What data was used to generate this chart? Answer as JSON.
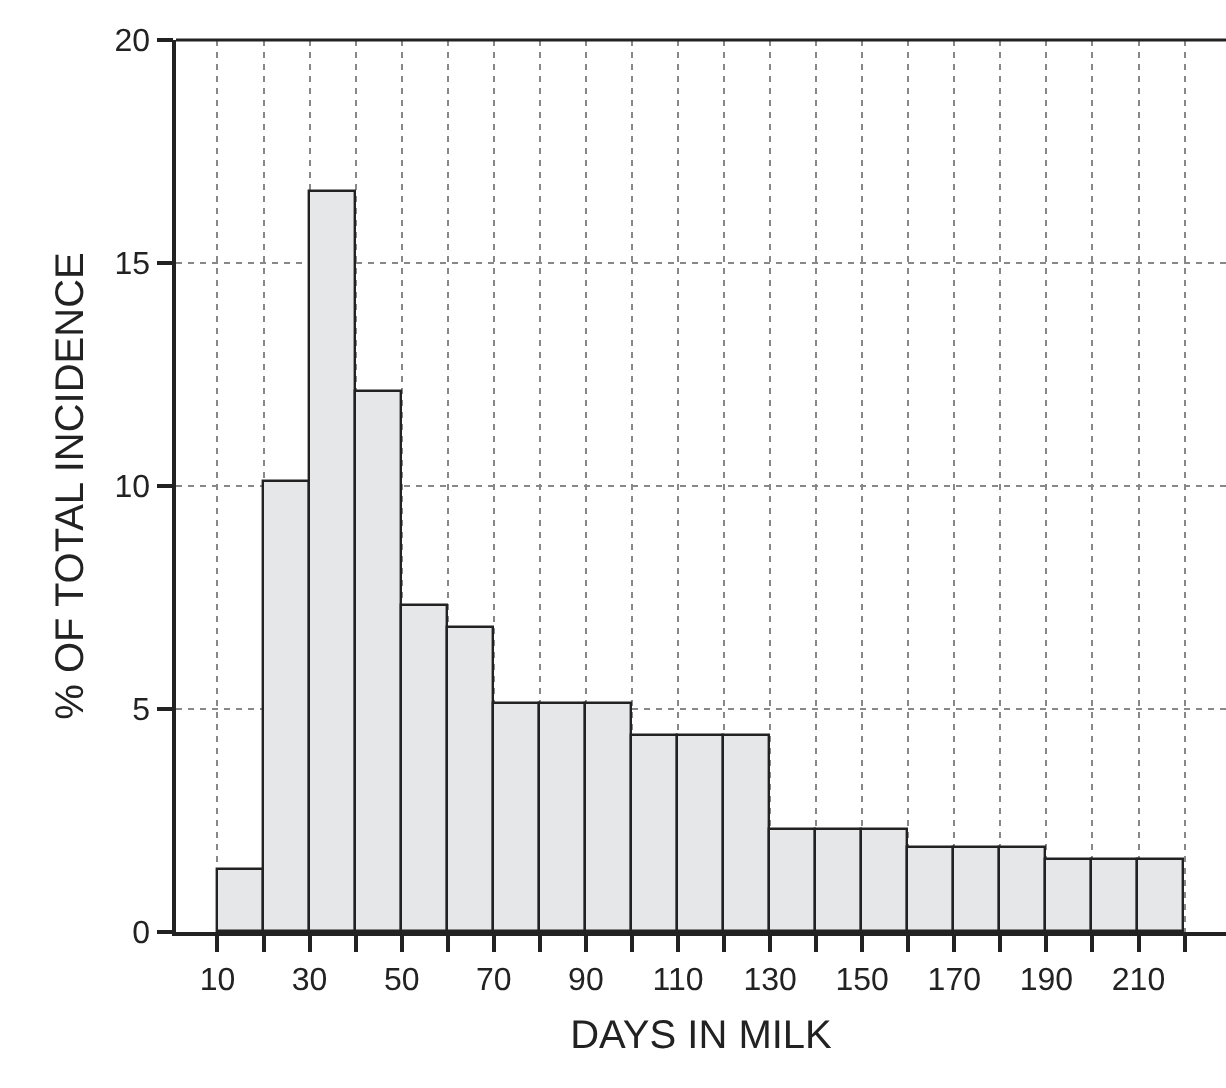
{
  "chart_data": {
    "type": "histogram",
    "xlabel": "DAYS IN MILK",
    "ylabel": "% OF TOTAL INCIDENCE",
    "bins": [
      10,
      20,
      30,
      40,
      50,
      60,
      70,
      80,
      90,
      100,
      110,
      120,
      130,
      140,
      150,
      160,
      170,
      180,
      190,
      200,
      210,
      220
    ],
    "values": [
      1.4,
      10.1,
      16.6,
      12.1,
      7.3,
      6.8,
      5.1,
      5.1,
      5.1,
      4.4,
      4.4,
      4.4,
      2.3,
      2.3,
      2.3,
      1.9,
      1.9,
      1.9,
      1.6,
      1.6,
      1.6
    ],
    "color": "#e6e7e9",
    "xlim": [
      1,
      229
    ],
    "ylim": [
      0,
      20
    ],
    "xticks": [
      10,
      {
        "value": 20,
        "label": null
      },
      30,
      {
        "value": 40,
        "label": null
      },
      50,
      {
        "value": 60,
        "label": null
      },
      70,
      {
        "value": 80,
        "label": null
      },
      90,
      {
        "value": 100,
        "label": null
      },
      110,
      {
        "value": 120,
        "label": null
      },
      130,
      {
        "value": 140,
        "label": null
      },
      150,
      {
        "value": 160,
        "label": null
      },
      170,
      {
        "value": 180,
        "label": null
      },
      190,
      {
        "value": 200,
        "label": null
      },
      210,
      {
        "value": 220,
        "label": null
      }
    ],
    "yticks": [
      0,
      5,
      10,
      15,
      20
    ],
    "grid": true,
    "legend": false
  }
}
